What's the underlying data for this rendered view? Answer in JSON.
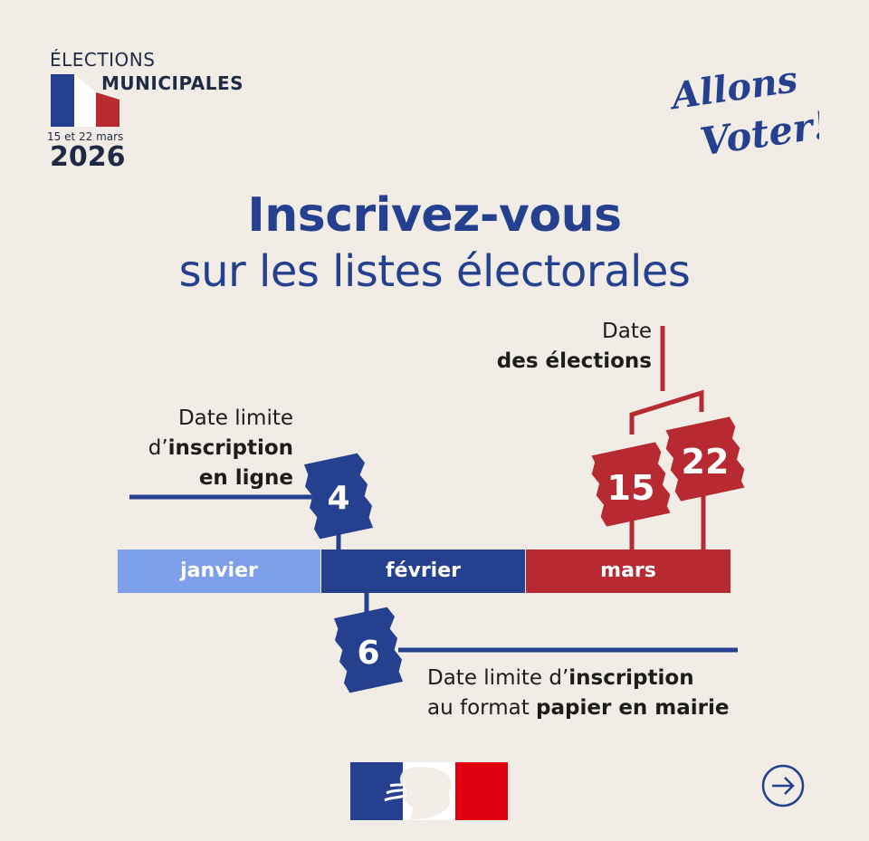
{
  "header": {
    "line1": "ÉLECTIONS",
    "line2": "MUNICIPALES",
    "dates": "15 et 22 mars",
    "year": "2026"
  },
  "slogan": {
    "line1": "Allons",
    "line2": "Voter!"
  },
  "title": "Inscrivez-vous",
  "subtitle": "sur les listes électorales",
  "timeline": {
    "months": [
      "janvier",
      "février",
      "mars"
    ],
    "online_deadline": {
      "day": "4",
      "label_line1": "Date limite",
      "label_line2_prefix": "d’",
      "label_line2_bold": "inscription",
      "label_line3_bold": "en ligne"
    },
    "paper_deadline": {
      "day": "6",
      "label_line1_prefix": "Date limite d’",
      "label_line1_bold": "inscription",
      "label_line2_prefix": "au format ",
      "label_line2_bold": "papier en mairie"
    },
    "election": {
      "days": [
        "15",
        "22"
      ],
      "label_line1": "Date",
      "label_line2_bold": "des élections"
    }
  },
  "colors": {
    "background": "#f1ece6",
    "blue": "#24408e",
    "light_blue": "#7ea0ea",
    "red": "#b72a31"
  },
  "icons": {
    "next": "arrow-right-circle-icon",
    "republic_logo": "marianne-logo"
  }
}
